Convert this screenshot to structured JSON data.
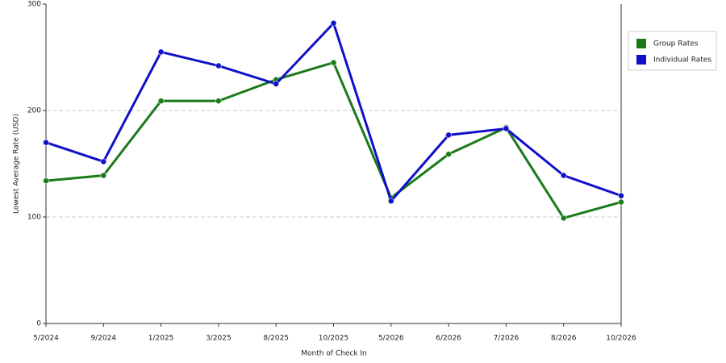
{
  "chart_data": {
    "type": "line",
    "y_label": "Lowest Average Rate (USD)",
    "x_label": "Month of Check In",
    "categories": [
      "5/2024",
      "9/2024",
      "1/2025",
      "3/2025",
      "8/2025",
      "10/2025",
      "5/2026",
      "6/2026",
      "7/2026",
      "8/2026",
      "10/2026"
    ],
    "series": [
      {
        "name": "Group Rates",
        "color": "#1a7a1a",
        "values": [
          134,
          139,
          209,
          209,
          229,
          245,
          118,
          159,
          184,
          99,
          114
        ]
      },
      {
        "name": "Individual Rates",
        "color": "#1010c8",
        "values": [
          170,
          152,
          255,
          242,
          225,
          282,
          115,
          177,
          183,
          139,
          120
        ]
      }
    ],
    "ylim": [
      0,
      300
    ],
    "yticks": [
      0,
      100,
      200,
      300
    ],
    "grid": true
  }
}
